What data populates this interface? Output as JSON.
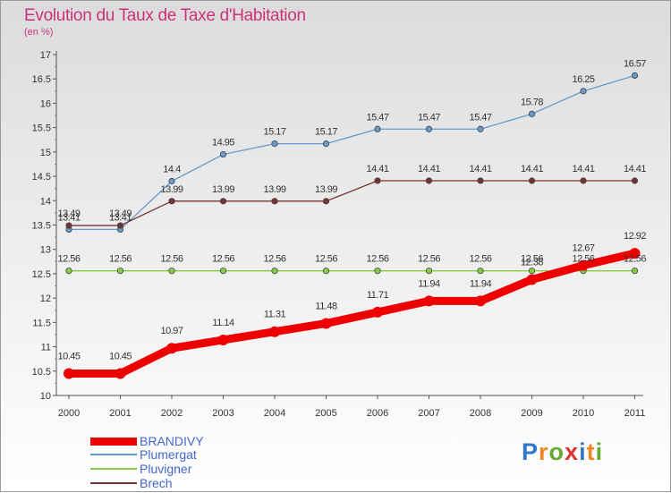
{
  "title": "Evolution du Taux de Taxe d'Habitation",
  "unit": "(en %)",
  "logo_text": "Proxiti",
  "chart_data": {
    "type": "line",
    "title": "Evolution du Taux de Taxe d'Habitation",
    "ylabel": "(en %)",
    "xlabel": "",
    "x": [
      "2000",
      "2001",
      "2002",
      "2003",
      "2004",
      "2005",
      "2006",
      "2007",
      "2008",
      "2009",
      "2010",
      "2011"
    ],
    "ylim": [
      10,
      17
    ],
    "yticks": [
      "10",
      "10.5",
      "11",
      "11.5",
      "12",
      "12.5",
      "13",
      "13.5",
      "14",
      "14.5",
      "15",
      "15.5",
      "16",
      "16.5",
      "17"
    ],
    "grid": false,
    "legend_position": "bottom-left",
    "series": [
      {
        "name": "BRANDIVY",
        "color": "#ee0000",
        "values": [
          10.45,
          10.45,
          10.97,
          11.14,
          11.31,
          11.48,
          11.71,
          11.94,
          11.94,
          12.38,
          12.67,
          12.92
        ]
      },
      {
        "name": "Plumergat",
        "color": "#6699cc",
        "values": [
          13.41,
          13.41,
          14.4,
          14.95,
          15.17,
          15.17,
          15.47,
          15.47,
          15.47,
          15.78,
          16.25,
          16.57
        ]
      },
      {
        "name": "Pluvigner",
        "color": "#88cc44",
        "values": [
          12.56,
          12.56,
          12.56,
          12.56,
          12.56,
          12.56,
          12.56,
          12.56,
          12.56,
          12.56,
          12.56,
          12.56
        ]
      },
      {
        "name": "Brech",
        "color": "#773333",
        "values": [
          13.49,
          13.49,
          13.99,
          13.99,
          13.99,
          13.99,
          14.41,
          14.41,
          14.41,
          14.41,
          14.41,
          14.41
        ]
      }
    ]
  }
}
